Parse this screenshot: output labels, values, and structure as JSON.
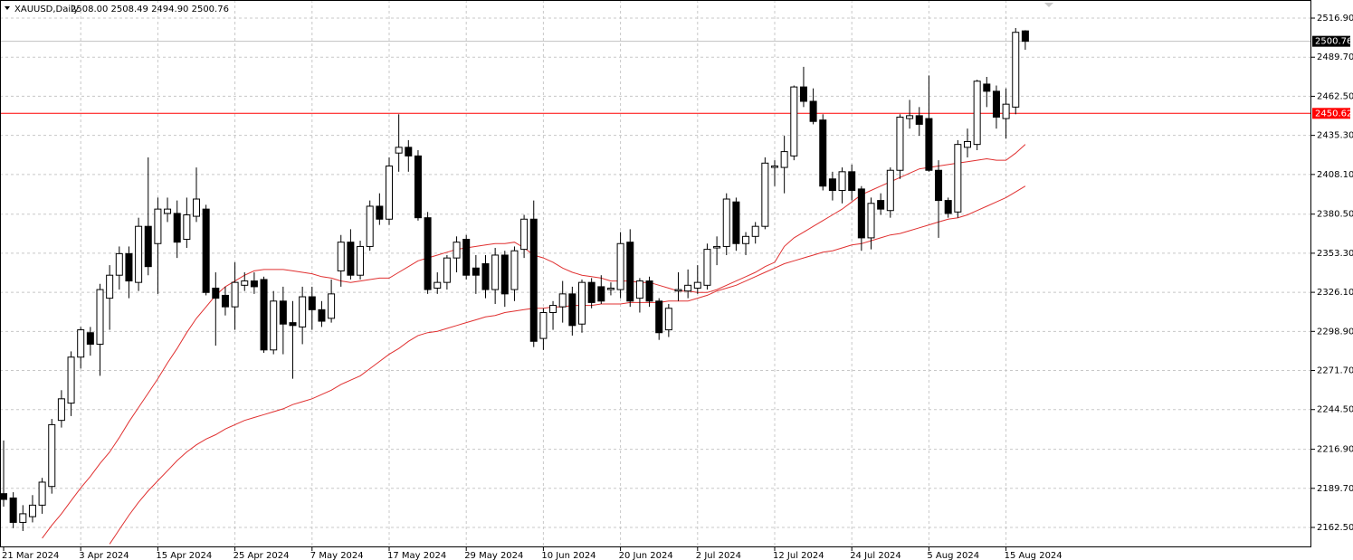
{
  "chart_data": {
    "type": "candlestick",
    "title": "XAUUSD,Daily",
    "quote": "2508.00 2508.49 2494.90 2500.76",
    "categories": [
      "21 Mar 2024",
      null,
      null,
      null,
      null,
      null,
      null,
      null,
      "3 Apr 2024",
      null,
      null,
      null,
      null,
      null,
      null,
      null,
      "15 Apr 2024",
      null,
      null,
      null,
      null,
      null,
      null,
      null,
      "25 Apr 2024",
      null,
      null,
      null,
      null,
      null,
      null,
      null,
      "7 May 2024",
      null,
      null,
      null,
      null,
      null,
      null,
      null,
      "17 May 2024",
      null,
      null,
      null,
      null,
      null,
      null,
      null,
      "29 May 2024",
      null,
      null,
      null,
      null,
      null,
      null,
      null,
      "10 Jun 2024",
      null,
      null,
      null,
      null,
      null,
      null,
      null,
      "20 Jun 2024",
      null,
      null,
      null,
      null,
      null,
      null,
      null,
      "2 Jul 2024",
      null,
      null,
      null,
      null,
      null,
      null,
      null,
      "12 Jul 2024",
      null,
      null,
      null,
      null,
      null,
      null,
      null,
      "24 Jul 2024",
      null,
      null,
      null,
      null,
      null,
      null,
      null,
      "5 Aug 2024",
      null,
      null,
      null,
      null,
      null,
      null,
      null,
      "15 Aug 2024",
      null,
      null
    ],
    "open": [
      2186,
      2183,
      2166,
      2170,
      2178,
      2191,
      2237,
      2249,
      2281,
      2298,
      2290,
      2322,
      2338,
      2353,
      2333,
      2372,
      2360,
      2381,
      2381,
      2363,
      2379,
      2384,
      2329,
      2324,
      2316,
      2331,
      2334,
      2335,
      2286,
      2320,
      2305,
      2302,
      2323,
      2314,
      2308,
      2341,
      2361,
      2338,
      2358,
      2386,
      2377,
      2423,
      2427,
      2421,
      2378,
      2329,
      2333,
      2350,
      2363,
      2343,
      2346,
      2328,
      2352,
      2328,
      2356,
      2377,
      2294,
      2312,
      2316,
      2325,
      2304,
      2333,
      2330,
      2328,
      2328,
      2361,
      2322,
      2334,
      2320,
      2300,
      2327,
      2327,
      2329,
      2331,
      2357,
      2358,
      2389,
      2360,
      2365,
      2372,
      2413,
      2413,
      2421,
      2469,
      2459,
      2446,
      2405,
      2397,
      2410,
      2398,
      2364,
      2390,
      2383,
      2411,
      2447,
      2449,
      2447,
      2411,
      2390,
      2382,
      2427,
      2429,
      2471,
      2466,
      2447,
      2455,
      2508.0
    ],
    "high": [
      2223,
      2187,
      2178,
      2185,
      2197,
      2238,
      2258,
      2285,
      2302,
      2302,
      2332,
      2345,
      2358,
      2358,
      2378,
      2420,
      2392,
      2392,
      2390,
      2392,
      2413,
      2387,
      2340,
      2330,
      2347,
      2340,
      2340,
      2337,
      2327,
      2330,
      2320,
      2330,
      2330,
      2320,
      2335,
      2366,
      2370,
      2362,
      2390,
      2395,
      2420,
      2450,
      2432,
      2425,
      2382,
      2340,
      2352,
      2365,
      2366,
      2352,
      2352,
      2357,
      2355,
      2358,
      2380,
      2390,
      2315,
      2320,
      2334,
      2330,
      2335,
      2336,
      2338,
      2333,
      2368,
      2370,
      2336,
      2337,
      2322,
      2318,
      2340,
      2342,
      2345,
      2360,
      2365,
      2395,
      2392,
      2368,
      2375,
      2420,
      2418,
      2435,
      2470,
      2483,
      2468,
      2450,
      2410,
      2413,
      2415,
      2400,
      2392,
      2395,
      2413,
      2450,
      2460,
      2455,
      2477,
      2418,
      2392,
      2432,
      2440,
      2474,
      2476,
      2470,
      2468,
      2510,
      2508.49
    ],
    "low": [
      2177,
      2162,
      2160,
      2166,
      2172,
      2186,
      2232,
      2240,
      2273,
      2282,
      2268,
      2300,
      2328,
      2322,
      2327,
      2338,
      2325,
      2375,
      2350,
      2357,
      2375,
      2324,
      2289,
      2310,
      2300,
      2327,
      2325,
      2284,
      2283,
      2283,
      2266,
      2290,
      2300,
      2302,
      2305,
      2330,
      2335,
      2335,
      2355,
      2373,
      2373,
      2410,
      2410,
      2376,
      2325,
      2325,
      2328,
      2340,
      2335,
      2325,
      2322,
      2318,
      2316,
      2320,
      2350,
      2288,
      2286,
      2300,
      2305,
      2296,
      2298,
      2315,
      2318,
      2324,
      2322,
      2316,
      2312,
      2316,
      2293,
      2295,
      2320,
      2322,
      2325,
      2328,
      2345,
      2352,
      2355,
      2352,
      2360,
      2370,
      2400,
      2395,
      2418,
      2455,
      2443,
      2397,
      2390,
      2388,
      2390,
      2355,
      2356,
      2380,
      2378,
      2405,
      2440,
      2435,
      2410,
      2364,
      2378,
      2378,
      2420,
      2425,
      2455,
      2440,
      2433,
      2450,
      2494.9
    ],
    "close": [
      2182,
      2166,
      2172,
      2178,
      2194,
      2234,
      2252,
      2281,
      2300,
      2290,
      2328,
      2338,
      2353,
      2334,
      2372,
      2344,
      2384,
      2384,
      2361,
      2380,
      2391,
      2326,
      2322,
      2316,
      2333,
      2334,
      2330,
      2286,
      2320,
      2304,
      2303,
      2323,
      2314,
      2306,
      2325,
      2361,
      2338,
      2358,
      2386,
      2377,
      2414,
      2427,
      2421,
      2378,
      2328,
      2333,
      2350,
      2361,
      2338,
      2338,
      2328,
      2352,
      2325,
      2355,
      2377,
      2292,
      2312,
      2317,
      2325,
      2303,
      2333,
      2319,
      2320,
      2329,
      2360,
      2320,
      2334,
      2320,
      2298,
      2315,
      2328,
      2331,
      2333,
      2356,
      2358,
      2391,
      2360,
      2365,
      2372,
      2416,
      2414,
      2424,
      2469,
      2459,
      2445,
      2400,
      2397,
      2410,
      2397,
      2364,
      2388,
      2384,
      2411,
      2448,
      2449,
      2443,
      2411,
      2390,
      2381,
      2429,
      2431,
      2473,
      2466,
      2448,
      2457,
      2507,
      2500.76
    ],
    "up_color": "#ffffff",
    "down_color": "#000000",
    "wick_color": "#000000",
    "series": [
      {
        "color": "#e03030",
        "values": [
          null,
          null,
          null,
          null,
          2155,
          2164,
          2172,
          2181,
          2190,
          2198,
          2207,
          2215,
          2225,
          2236,
          2246,
          2256,
          2266,
          2277,
          2287,
          2298,
          2308,
          2316,
          2324,
          2330,
          2334,
          2338,
          2341,
          2342,
          2342,
          2342,
          2341,
          2340,
          2339,
          2337,
          2336,
          2334,
          2333,
          2334,
          2335,
          2336,
          2336,
          2340,
          2344,
          2348,
          2350,
          2352,
          2354,
          2356,
          2357,
          2358,
          2359,
          2360,
          2360,
          2361,
          2357,
          2352,
          2350,
          2347,
          2343,
          2340,
          2338,
          2337,
          2336,
          2334,
          2334,
          2334,
          2333,
          2333,
          2331,
          2329,
          2327,
          2327,
          2326,
          2326,
          2328,
          2331,
          2334,
          2337,
          2340,
          2344,
          2347,
          2358,
          2364,
          2368,
          2372,
          2376,
          2380,
          2384,
          2389,
          2394,
          2397,
          2400,
          2403,
          2406,
          2409,
          2412,
          2413,
          2414,
          2415,
          2416,
          2417,
          2418,
          2419,
          2418,
          2418,
          2423,
          2429
        ]
      },
      {
        "color": "#e03030",
        "values": [
          null,
          null,
          null,
          null,
          null,
          null,
          null,
          null,
          null,
          null,
          null,
          2151,
          2161,
          2171,
          2180,
          2188,
          2195,
          2202,
          2209,
          2215,
          2220,
          2224,
          2227,
          2231,
          2234,
          2237,
          2239,
          2241,
          2243,
          2245,
          2248,
          2250,
          2252,
          2255,
          2258,
          2262,
          2265,
          2268,
          2273,
          2278,
          2283,
          2287,
          2292,
          2296,
          2298,
          2299,
          2301,
          2303,
          2305,
          2307,
          2309,
          2310,
          2312,
          2313,
          2314,
          2315,
          2315,
          2316,
          2316,
          2317,
          2317,
          2317,
          2318,
          2318,
          2318,
          2319,
          2319,
          2319,
          2319,
          2320,
          2320,
          2320,
          2322,
          2324,
          2327,
          2329,
          2331,
          2334,
          2337,
          2340,
          2343,
          2346,
          2348,
          2350,
          2352,
          2354,
          2355,
          2357,
          2359,
          2360,
          2362,
          2364,
          2366,
          2367,
          2369,
          2371,
          2373,
          2375,
          2377,
          2378,
          2380,
          2383,
          2386,
          2389,
          2392,
          2396,
          2400
        ]
      }
    ],
    "hlines": [
      {
        "value": 2450.62,
        "color": "#ff0000",
        "label_bg": "#ff0000"
      },
      {
        "value": 2500.76,
        "color": "#c0c0c0",
        "label_bg": "#000000"
      }
    ],
    "ylim": [
      2148.65,
      2529.5
    ],
    "yticks": [
      {
        "value": 2516.9,
        "label": "2516.90"
      },
      {
        "value": 2489.7,
        "label": "2489.70"
      },
      {
        "value": 2462.5,
        "label": "2462.50"
      },
      {
        "value": 2435.3,
        "label": "2435.30"
      },
      {
        "value": 2408.1,
        "label": "2408.10"
      },
      {
        "value": 2380.5,
        "label": "2380.50"
      },
      {
        "value": 2353.3,
        "label": "2353.30"
      },
      {
        "value": 2326.1,
        "label": "2326.10"
      },
      {
        "value": 2298.9,
        "label": "2298.90"
      },
      {
        "value": 2271.7,
        "label": "2271.70"
      },
      {
        "value": 2244.5,
        "label": "2244.50"
      },
      {
        "value": 2216.9,
        "label": "2216.90"
      },
      {
        "value": 2189.7,
        "label": "2189.70"
      },
      {
        "value": 2162.5,
        "label": "2162.50"
      }
    ],
    "grid": true
  }
}
